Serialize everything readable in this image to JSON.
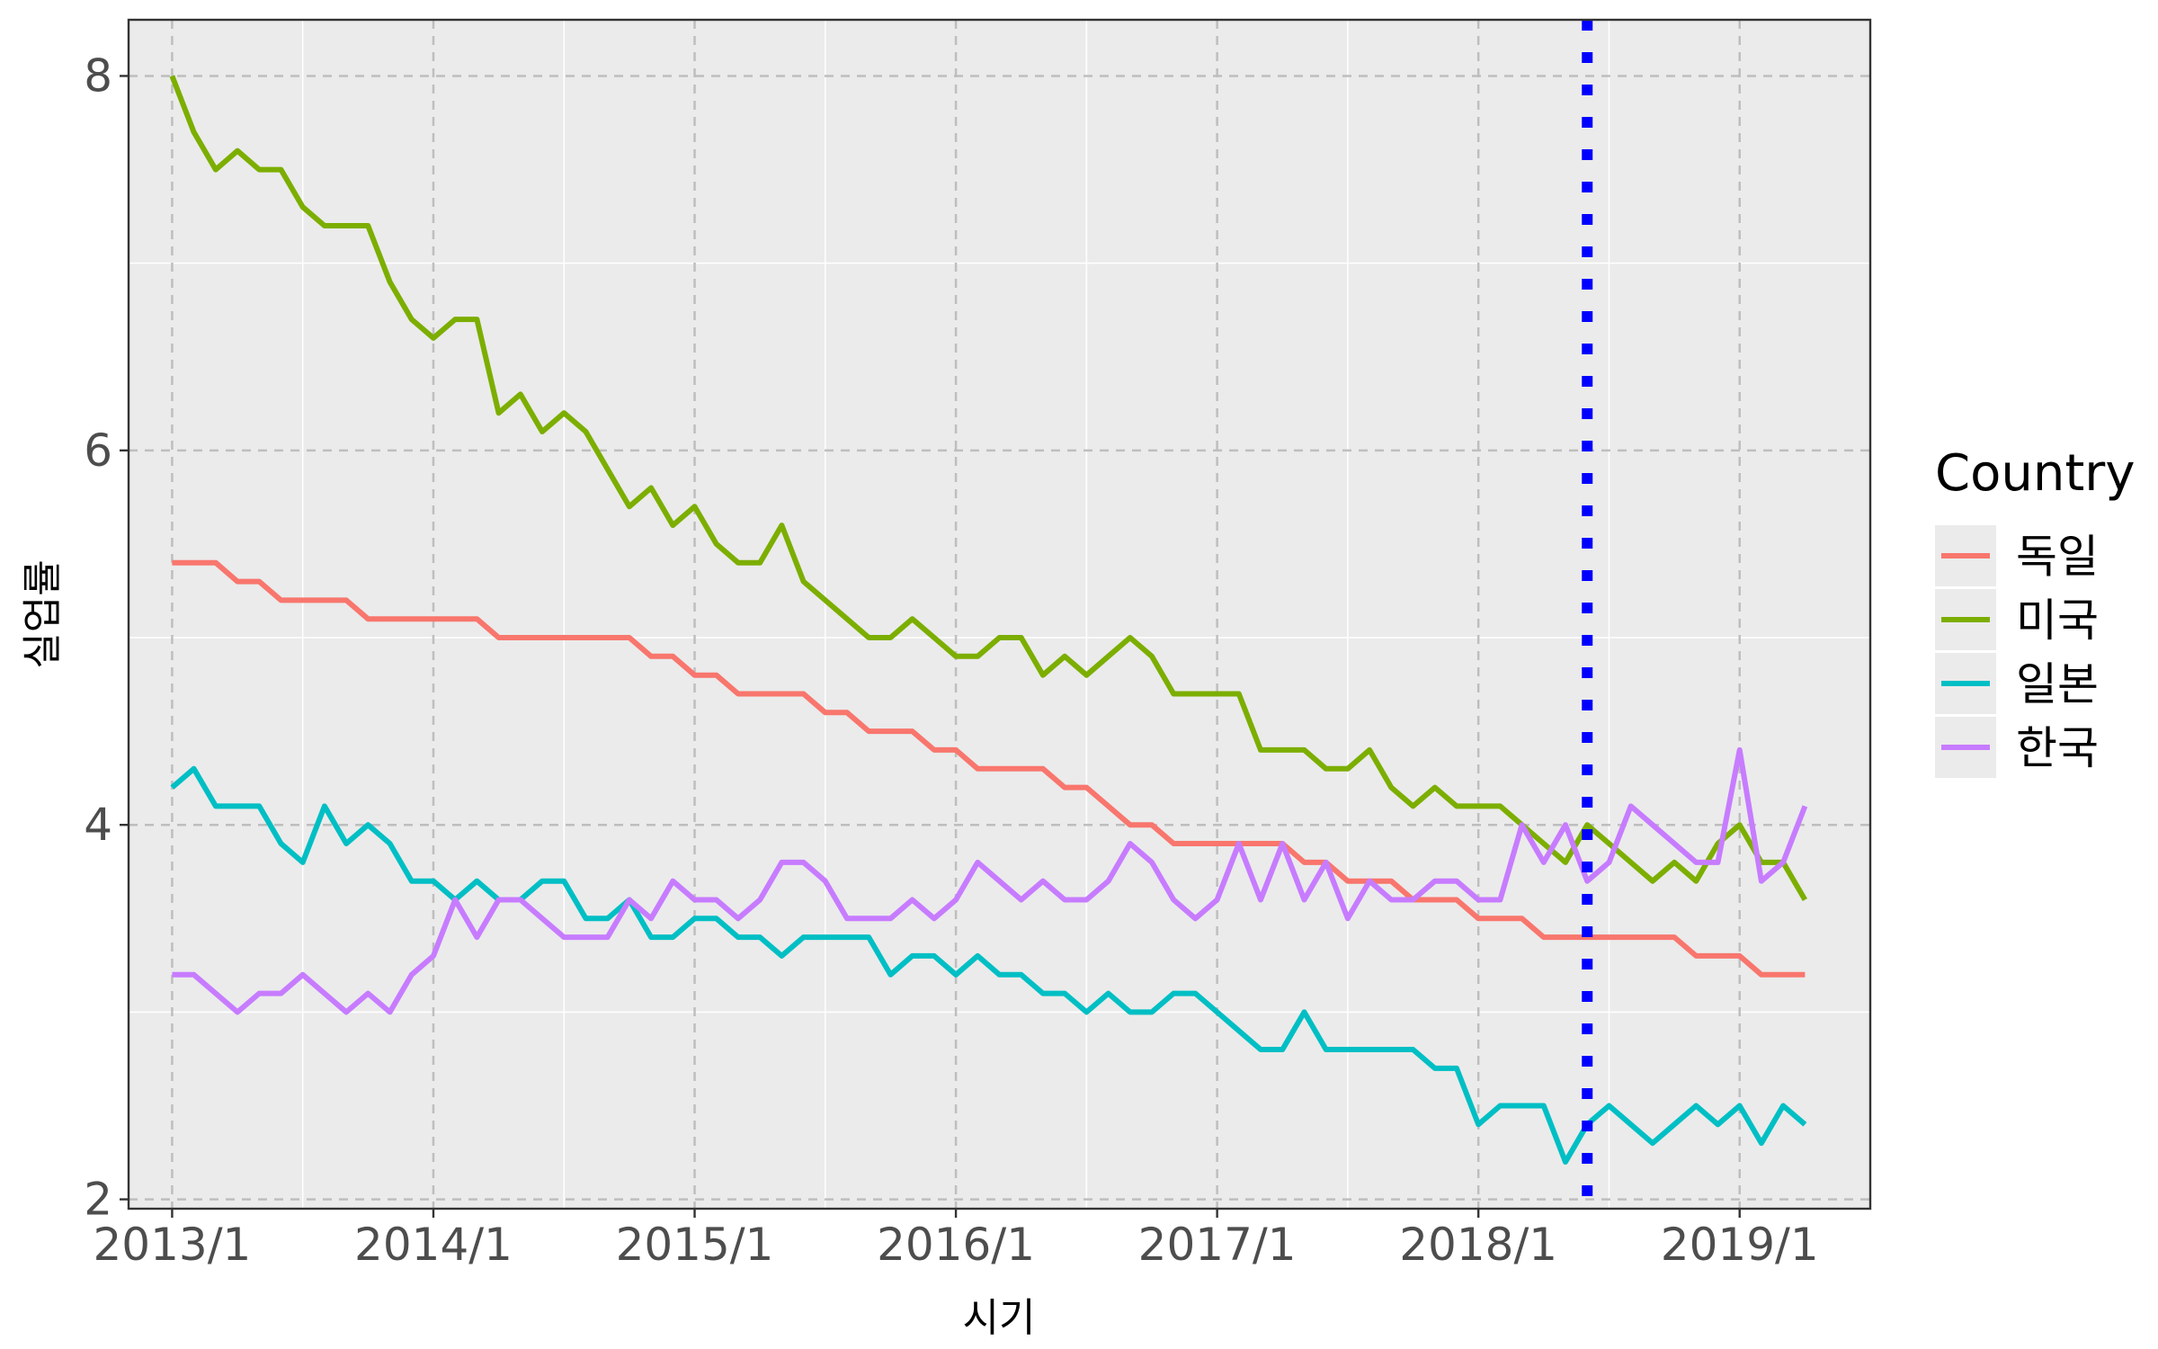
{
  "chart_data": {
    "type": "line",
    "title": "",
    "xlabel": "시기",
    "ylabel": "실업률",
    "x_tick_labels": [
      "2013/1",
      "2014/1",
      "2015/1",
      "2016/1",
      "2017/1",
      "2018/1",
      "2019/1"
    ],
    "y_ticks": [
      2,
      4,
      6,
      8
    ],
    "ylim": [
      1.95,
      8.3
    ],
    "xlim": [
      "2012-11",
      "2019-07"
    ],
    "grid": true,
    "legend": {
      "title": "Country",
      "position": "right"
    },
    "vline": {
      "x": "2018-06",
      "color": "#0000ff",
      "style": "dotted"
    },
    "x": [
      "2013-01",
      "2013-02",
      "2013-03",
      "2013-04",
      "2013-05",
      "2013-06",
      "2013-07",
      "2013-08",
      "2013-09",
      "2013-10",
      "2013-11",
      "2013-12",
      "2014-01",
      "2014-02",
      "2014-03",
      "2014-04",
      "2014-05",
      "2014-06",
      "2014-07",
      "2014-08",
      "2014-09",
      "2014-10",
      "2014-11",
      "2014-12",
      "2015-01",
      "2015-02",
      "2015-03",
      "2015-04",
      "2015-05",
      "2015-06",
      "2015-07",
      "2015-08",
      "2015-09",
      "2015-10",
      "2015-11",
      "2015-12",
      "2016-01",
      "2016-02",
      "2016-03",
      "2016-04",
      "2016-05",
      "2016-06",
      "2016-07",
      "2016-08",
      "2016-09",
      "2016-10",
      "2016-11",
      "2016-12",
      "2017-01",
      "2017-02",
      "2017-03",
      "2017-04",
      "2017-05",
      "2017-06",
      "2017-07",
      "2017-08",
      "2017-09",
      "2017-10",
      "2017-11",
      "2017-12",
      "2018-01",
      "2018-02",
      "2018-03",
      "2018-04",
      "2018-05",
      "2018-06",
      "2018-07",
      "2018-08",
      "2018-09",
      "2018-10",
      "2018-11",
      "2018-12",
      "2019-01",
      "2019-02",
      "2019-03",
      "2019-04"
    ],
    "series": [
      {
        "name": "독일",
        "color": "#F8766D",
        "values": [
          5.4,
          5.4,
          5.4,
          5.3,
          5.3,
          5.2,
          5.2,
          5.2,
          5.2,
          5.1,
          5.1,
          5.1,
          5.1,
          5.1,
          5.1,
          5.0,
          5.0,
          5.0,
          5.0,
          5.0,
          5.0,
          5.0,
          4.9,
          4.9,
          4.8,
          4.8,
          4.7,
          4.7,
          4.7,
          4.7,
          4.6,
          4.6,
          4.5,
          4.5,
          4.5,
          4.4,
          4.4,
          4.3,
          4.3,
          4.3,
          4.3,
          4.2,
          4.2,
          4.1,
          4.0,
          4.0,
          3.9,
          3.9,
          3.9,
          3.9,
          3.9,
          3.9,
          3.8,
          3.8,
          3.7,
          3.7,
          3.7,
          3.6,
          3.6,
          3.6,
          3.5,
          3.5,
          3.5,
          3.4,
          3.4,
          3.4,
          3.4,
          3.4,
          3.4,
          3.4,
          3.3,
          3.3,
          3.3,
          3.2,
          3.2,
          3.2
        ]
      },
      {
        "name": "미국",
        "color": "#7CAE00",
        "values": [
          8.0,
          7.7,
          7.5,
          7.6,
          7.5,
          7.5,
          7.3,
          7.2,
          7.2,
          7.2,
          6.9,
          6.7,
          6.6,
          6.7,
          6.7,
          6.2,
          6.3,
          6.1,
          6.2,
          6.1,
          5.9,
          5.7,
          5.8,
          5.6,
          5.7,
          5.5,
          5.4,
          5.4,
          5.6,
          5.3,
          5.2,
          5.1,
          5.0,
          5.0,
          5.1,
          5.0,
          4.9,
          4.9,
          5.0,
          5.0,
          4.8,
          4.9,
          4.8,
          4.9,
          5.0,
          4.9,
          4.7,
          4.7,
          4.7,
          4.7,
          4.4,
          4.4,
          4.4,
          4.3,
          4.3,
          4.4,
          4.2,
          4.1,
          4.2,
          4.1,
          4.1,
          4.1,
          4.0,
          3.9,
          3.8,
          4.0,
          3.9,
          3.8,
          3.7,
          3.8,
          3.7,
          3.9,
          4.0,
          3.8,
          3.8,
          3.6
        ]
      },
      {
        "name": "일본",
        "color": "#00BFC4",
        "values": [
          4.2,
          4.3,
          4.1,
          4.1,
          4.1,
          3.9,
          3.8,
          4.1,
          3.9,
          4.0,
          3.9,
          3.7,
          3.7,
          3.6,
          3.7,
          3.6,
          3.6,
          3.7,
          3.7,
          3.5,
          3.5,
          3.6,
          3.4,
          3.4,
          3.5,
          3.5,
          3.4,
          3.4,
          3.3,
          3.4,
          3.4,
          3.4,
          3.4,
          3.2,
          3.3,
          3.3,
          3.2,
          3.3,
          3.2,
          3.2,
          3.1,
          3.1,
          3.0,
          3.1,
          3.0,
          3.0,
          3.1,
          3.1,
          3.0,
          2.9,
          2.8,
          2.8,
          3.0,
          2.8,
          2.8,
          2.8,
          2.8,
          2.8,
          2.7,
          2.7,
          2.4,
          2.5,
          2.5,
          2.5,
          2.2,
          2.4,
          2.5,
          2.4,
          2.3,
          2.4,
          2.5,
          2.4,
          2.5,
          2.3,
          2.5,
          2.4
        ]
      },
      {
        "name": "한국",
        "color": "#C77CFF",
        "values": [
          3.2,
          3.2,
          3.1,
          3.0,
          3.1,
          3.1,
          3.2,
          3.1,
          3.0,
          3.1,
          3.0,
          3.2,
          3.3,
          3.6,
          3.4,
          3.6,
          3.6,
          3.5,
          3.4,
          3.4,
          3.4,
          3.6,
          3.5,
          3.7,
          3.6,
          3.6,
          3.5,
          3.6,
          3.8,
          3.8,
          3.7,
          3.5,
          3.5,
          3.5,
          3.6,
          3.5,
          3.6,
          3.8,
          3.7,
          3.6,
          3.7,
          3.6,
          3.6,
          3.7,
          3.9,
          3.8,
          3.6,
          3.5,
          3.6,
          3.9,
          3.6,
          3.9,
          3.6,
          3.8,
          3.5,
          3.7,
          3.6,
          3.6,
          3.7,
          3.7,
          3.6,
          3.6,
          4.0,
          3.8,
          4.0,
          3.7,
          3.8,
          4.1,
          4.0,
          3.9,
          3.8,
          3.8,
          4.4,
          3.7,
          3.8,
          4.1
        ]
      }
    ]
  }
}
